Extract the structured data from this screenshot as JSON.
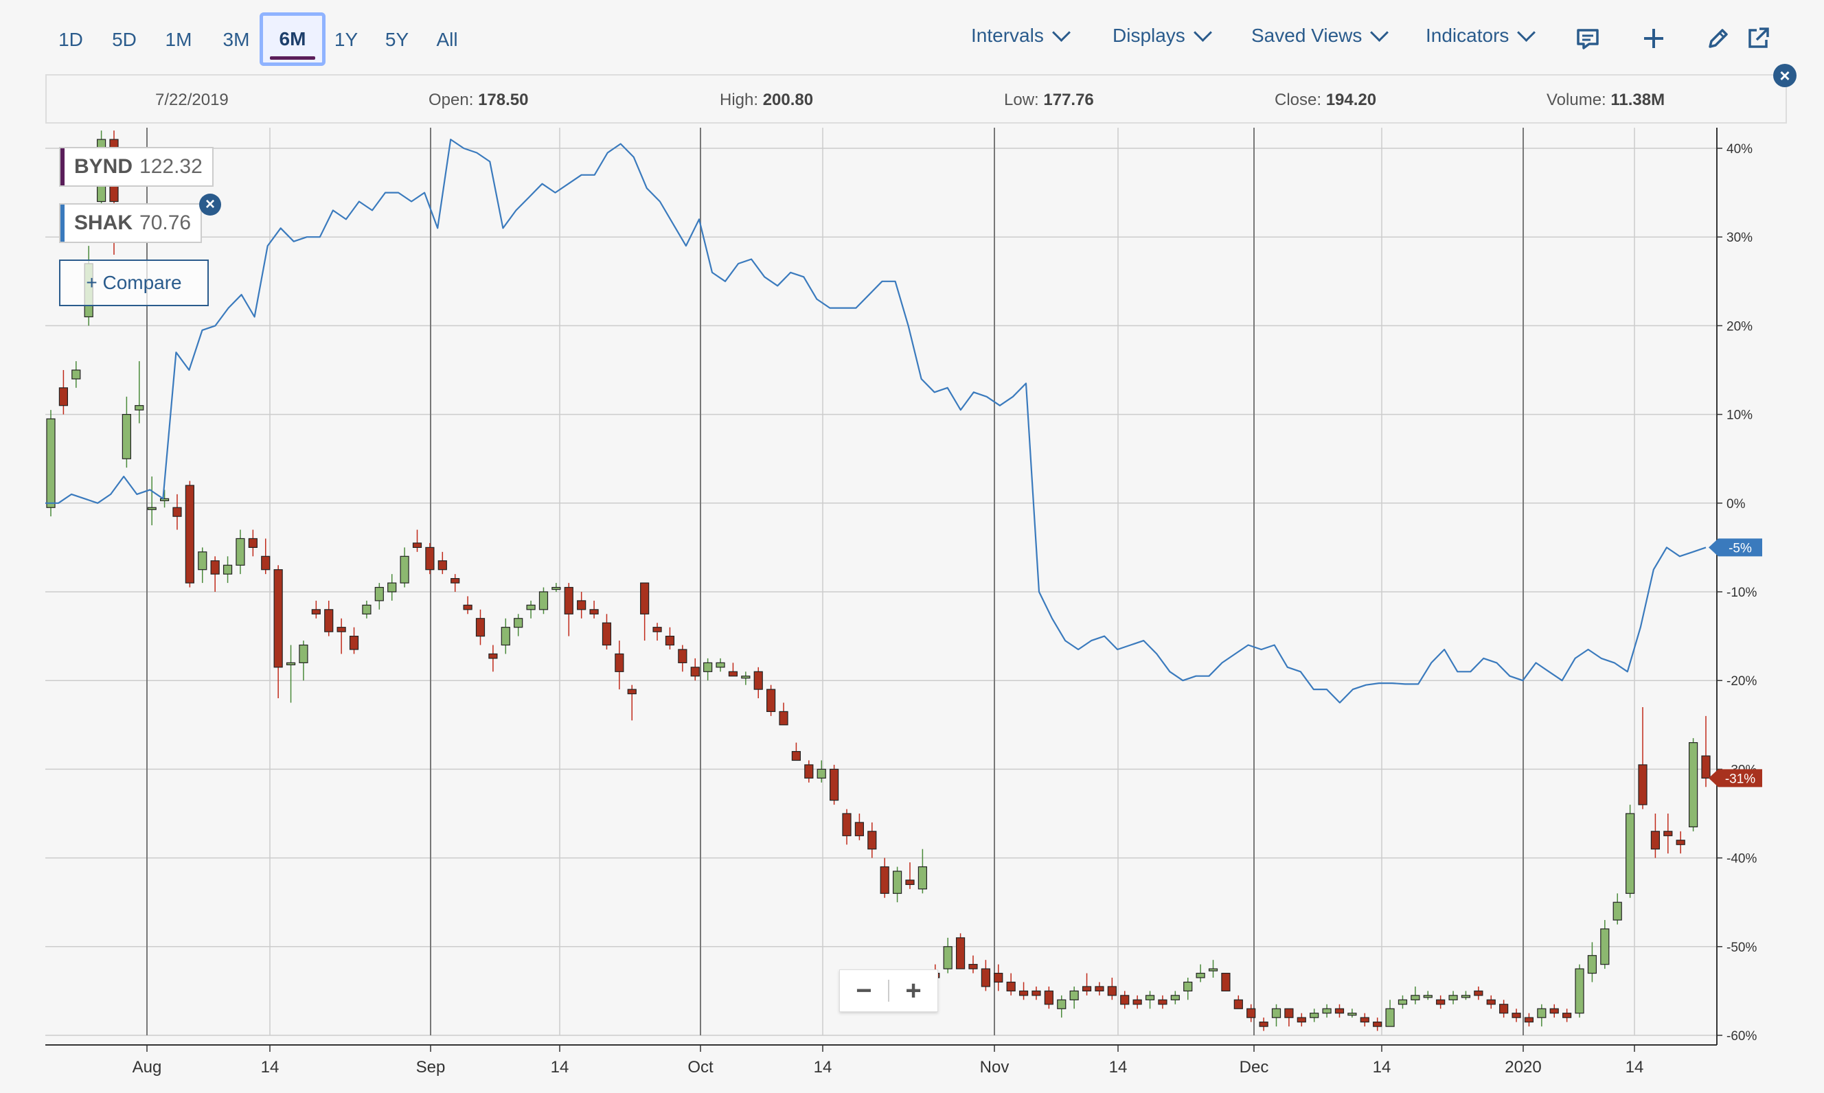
{
  "toolbar": {
    "ranges": [
      "1D",
      "5D",
      "1M",
      "3M",
      "6M",
      "1Y",
      "5Y",
      "All"
    ],
    "active_range": "6M",
    "menus": [
      "Intervals",
      "Displays",
      "Saved Views",
      "Indicators"
    ]
  },
  "infobar": {
    "date": "7/22/2019",
    "open_label": "Open:",
    "open": "178.50",
    "high_label": "High:",
    "high": "200.80",
    "low_label": "Low:",
    "low": "177.76",
    "close_label": "Close:",
    "close": "194.20",
    "volume_label": "Volume:",
    "volume": "11.38M"
  },
  "legend": [
    {
      "symbol": "BYND",
      "value": "122.32",
      "color": "#5a1e5a"
    },
    {
      "symbol": "SHAK",
      "value": "70.76",
      "color": "#3a7abd"
    }
  ],
  "compare_label": "+ Compare",
  "colors": {
    "up": "#8cb870",
    "down": "#a8321e",
    "shak_line": "#3a7abd",
    "axis_text": "#333333",
    "grid": "#cccccc"
  },
  "chart_data": {
    "type": "line",
    "y_unit": "%",
    "ylim": [
      -60,
      40
    ],
    "y_ticks": [
      "40%",
      "30%",
      "20%",
      "10%",
      "0%",
      "-10%",
      "-20%",
      "-30%",
      "-40%",
      "-50%",
      "-60%"
    ],
    "x_ticks": [
      "Aug",
      "14",
      "Sep",
      "14",
      "Oct",
      "14",
      "Nov",
      "14",
      "Dec",
      "14",
      "2020",
      "14"
    ],
    "grid": true,
    "series": [
      {
        "name": "SHAK",
        "style": "line",
        "end_label": "-5%",
        "values": [
          0,
          0,
          1,
          0.5,
          0,
          1,
          3,
          1,
          1.5,
          0.5,
          17,
          15,
          19.5,
          20,
          22,
          23.5,
          21,
          29,
          31,
          29.5,
          30,
          30,
          33,
          32,
          34,
          33,
          35,
          35,
          34,
          35,
          31,
          41,
          40,
          39.5,
          38.5,
          31,
          33,
          34.5,
          36,
          35,
          36,
          37,
          37,
          39.5,
          40.5,
          39,
          35.5,
          34,
          31.5,
          29,
          32,
          26,
          25,
          27,
          27.5,
          25.5,
          24.5,
          26,
          25.5,
          23,
          22,
          22,
          22,
          23.5,
          25,
          25,
          20,
          14,
          12.5,
          13,
          10.5,
          12.5,
          12,
          11,
          12,
          13.5,
          -10,
          -13,
          -15.5,
          -16.5,
          -15.5,
          -15,
          -16.5,
          -16,
          -15.5,
          -17,
          -19,
          -20,
          -19.5,
          -19.5,
          -18,
          -17,
          -16,
          -16.5,
          -16,
          -18.5,
          -19,
          -21,
          -21,
          -22.5,
          -21,
          -20.5,
          -20.3,
          -20.3,
          -20.4,
          -20.4,
          -18,
          -16.5,
          -19,
          -19,
          -17.5,
          -18,
          -19.5,
          -20,
          -18,
          -19,
          -20,
          -17.5,
          -16.5,
          -17.5,
          -18,
          -19,
          -14,
          -7.5,
          -5,
          -6,
          -5.5,
          -5
        ]
      },
      {
        "name": "BYND",
        "style": "candlestick",
        "end_label": "-31%",
        "candles": [
          [
            -0.5,
            9.5,
            -1.5,
            10.5
          ],
          [
            13,
            11,
            10,
            15
          ],
          [
            14,
            15,
            13,
            16
          ],
          [
            21,
            27,
            20,
            29
          ],
          [
            34,
            41,
            33,
            42
          ],
          [
            41,
            34,
            28,
            42
          ],
          [
            5,
            10,
            4,
            12
          ],
          [
            10.5,
            11,
            9,
            16
          ],
          [
            -0.5,
            -0.5,
            -2.5,
            3
          ],
          [
            0.5,
            0.5,
            -0.5,
            1.5
          ],
          [
            -0.5,
            -1.5,
            -3,
            1
          ],
          [
            2,
            -9,
            -9.5,
            2.5
          ],
          [
            -7.5,
            -5.5,
            -9,
            -5
          ],
          [
            -6.5,
            -8,
            -10,
            -6
          ],
          [
            -8,
            -7,
            -9,
            -6
          ],
          [
            -7,
            -4,
            -8,
            -3
          ],
          [
            -4,
            -5,
            -6,
            -3
          ],
          [
            -6,
            -7.5,
            -8,
            -4
          ],
          [
            -7.5,
            -18.5,
            -22,
            -7
          ],
          [
            -18,
            -18,
            -22.5,
            -16
          ],
          [
            -18,
            -16,
            -20,
            -15.5
          ],
          [
            -12,
            -12.5,
            -13,
            -11
          ],
          [
            -12,
            -14.5,
            -15,
            -11
          ],
          [
            -14,
            -14.5,
            -17,
            -13
          ],
          [
            -15,
            -16.5,
            -17,
            -14
          ],
          [
            -12.5,
            -11.5,
            -13,
            -11
          ],
          [
            -11,
            -9.5,
            -12,
            -9
          ],
          [
            -10,
            -9,
            -11,
            -8
          ],
          [
            -9,
            -6,
            -9.5,
            -5
          ],
          [
            -4.5,
            -5,
            -5.5,
            -3
          ],
          [
            -5,
            -7.5,
            -8,
            -4.5
          ],
          [
            -6.5,
            -7.5,
            -8,
            -5.5
          ],
          [
            -8.5,
            -9,
            -10,
            -8
          ],
          [
            -11.5,
            -12,
            -12.5,
            -10.5
          ],
          [
            -13,
            -15,
            -16,
            -12
          ],
          [
            -17,
            -17.5,
            -19,
            -16
          ],
          [
            -16,
            -14,
            -17,
            -13
          ],
          [
            -14,
            -13,
            -15,
            -12.5
          ],
          [
            -12,
            -11.5,
            -13,
            -11
          ],
          [
            -12,
            -10,
            -12.5,
            -9.5
          ],
          [
            -9.5,
            -9.5,
            -10,
            -9
          ],
          [
            -9.5,
            -12.5,
            -15,
            -9
          ],
          [
            -11,
            -12,
            -13,
            -10
          ],
          [
            -12,
            -12.5,
            -13,
            -11
          ],
          [
            -13.5,
            -16,
            -16.5,
            -12.5
          ],
          [
            -17,
            -19,
            -21,
            -15.5
          ],
          [
            -21,
            -21.5,
            -24.5,
            -20.5
          ],
          [
            -9,
            -12.5,
            -15.5,
            -9
          ],
          [
            -14,
            -14.5,
            -15.5,
            -13.5
          ],
          [
            -15,
            -16,
            -16.5,
            -14
          ],
          [
            -16.5,
            -18,
            -19,
            -16
          ],
          [
            -18.5,
            -19.5,
            -20,
            -17.5
          ],
          [
            -19,
            -18,
            -20,
            -17.5
          ],
          [
            -18.5,
            -18,
            -19,
            -17.5
          ],
          [
            -19,
            -19.5,
            -19.5,
            -18
          ],
          [
            -19.5,
            -19.5,
            -20.5,
            -19
          ],
          [
            -19,
            -21,
            -22,
            -18.5
          ],
          [
            -21,
            -23.5,
            -24,
            -20.5
          ],
          [
            -23.5,
            -25,
            -25,
            -22.5
          ],
          [
            -28,
            -29,
            -29,
            -27
          ],
          [
            -29.5,
            -31,
            -31.5,
            -29
          ],
          [
            -31,
            -30,
            -31.5,
            -29
          ],
          [
            -30,
            -33.5,
            -34,
            -29.5
          ],
          [
            -35,
            -37.5,
            -38.5,
            -34.5
          ],
          [
            -36,
            -37.5,
            -38,
            -35
          ],
          [
            -37,
            -39,
            -40,
            -36
          ],
          [
            -41,
            -44,
            -44.5,
            -40
          ],
          [
            -44,
            -41.5,
            -45,
            -41
          ],
          [
            -42.5,
            -43,
            -43.5,
            -40.5
          ],
          [
            -43.5,
            -41,
            -44,
            -39
          ],
          [
            -53,
            -53.5,
            -54.5,
            -52
          ],
          [
            -52.5,
            -50,
            -53,
            -49
          ],
          [
            -49,
            -52.5,
            -52.5,
            -48.5
          ],
          [
            -52,
            -52.5,
            -53,
            -51
          ],
          [
            -52.5,
            -54.5,
            -55,
            -51.5
          ],
          [
            -53,
            -54,
            -55,
            -52
          ],
          [
            -54,
            -55,
            -55.5,
            -53
          ],
          [
            -55,
            -55.5,
            -56,
            -54
          ],
          [
            -55,
            -55.5,
            -56,
            -54.5
          ],
          [
            -55,
            -56.5,
            -57,
            -54.5
          ],
          [
            -57,
            -56,
            -58,
            -55.5
          ],
          [
            -56,
            -55,
            -57,
            -54.5
          ],
          [
            -54.5,
            -55,
            -55.5,
            -53
          ],
          [
            -54.5,
            -55,
            -55.5,
            -54
          ],
          [
            -54.5,
            -55.5,
            -56,
            -53.5
          ],
          [
            -55.5,
            -56.5,
            -57,
            -55
          ],
          [
            -56,
            -56.5,
            -57,
            -55.5
          ],
          [
            -56,
            -55.5,
            -57,
            -55
          ],
          [
            -56,
            -56.5,
            -57,
            -55.5
          ],
          [
            -56,
            -55.5,
            -56.5,
            -55
          ],
          [
            -55,
            -54,
            -56,
            -53.5
          ],
          [
            -53.5,
            -53,
            -54,
            -52
          ],
          [
            -52.5,
            -52.5,
            -53.5,
            -51.5
          ],
          [
            -53,
            -55,
            -55,
            -53
          ],
          [
            -56,
            -57,
            -57,
            -55.5
          ],
          [
            -57,
            -58,
            -58.5,
            -56.5
          ],
          [
            -58.5,
            -59,
            -59.5,
            -58
          ],
          [
            -58,
            -57,
            -59,
            -56.5
          ],
          [
            -57,
            -58,
            -59,
            -57
          ],
          [
            -58,
            -58.5,
            -59,
            -57.5
          ],
          [
            -58,
            -57.5,
            -58.5,
            -57
          ],
          [
            -57.5,
            -57,
            -58,
            -56.5
          ],
          [
            -57,
            -57.5,
            -58,
            -56.5
          ],
          [
            -57.5,
            -57.5,
            -58,
            -57
          ],
          [
            -58,
            -58.5,
            -59,
            -57.5
          ],
          [
            -58.5,
            -59,
            -59.5,
            -58
          ],
          [
            -59,
            -57,
            -59,
            -56
          ],
          [
            -56.5,
            -56,
            -57,
            -55.5
          ],
          [
            -56,
            -55.5,
            -56.5,
            -54.5
          ],
          [
            -55.5,
            -55.5,
            -56,
            -55
          ],
          [
            -56,
            -56.5,
            -57,
            -55.5
          ],
          [
            -56,
            -55.5,
            -56.5,
            -55
          ],
          [
            -55.5,
            -55.5,
            -56,
            -55
          ],
          [
            -55,
            -55.5,
            -56,
            -54.5
          ],
          [
            -56,
            -56.5,
            -57,
            -55.5
          ],
          [
            -56.5,
            -57.5,
            -58,
            -56
          ],
          [
            -57.5,
            -58,
            -58.5,
            -57
          ],
          [
            -58,
            -58.5,
            -59,
            -57.5
          ],
          [
            -58,
            -57,
            -59,
            -56.5
          ],
          [
            -57,
            -57.5,
            -58,
            -56.5
          ],
          [
            -57.5,
            -58,
            -58.5,
            -57
          ],
          [
            -57.5,
            -52.5,
            -58,
            -52
          ],
          [
            -53,
            -51,
            -54,
            -49.5
          ],
          [
            -52,
            -48,
            -52.5,
            -47
          ],
          [
            -47,
            -45,
            -47.5,
            -44
          ],
          [
            -44,
            -35,
            -44.5,
            -34
          ],
          [
            -29.5,
            -34,
            -34.5,
            -23
          ],
          [
            -37,
            -39,
            -40,
            -35
          ],
          [
            -37,
            -37.5,
            -39.5,
            -35
          ],
          [
            -38,
            -38.5,
            -39.5,
            -37
          ],
          [
            -36.5,
            -27,
            -37,
            -26.5
          ],
          [
            -28.5,
            -31,
            -32,
            -24
          ]
        ]
      }
    ]
  },
  "zoom": {
    "minus": "−",
    "plus": "+"
  },
  "toolbar_icons": [
    "comment-icon",
    "plus-icon",
    "pencil-icon",
    "share-external-icon"
  ],
  "close_symbol": "×"
}
